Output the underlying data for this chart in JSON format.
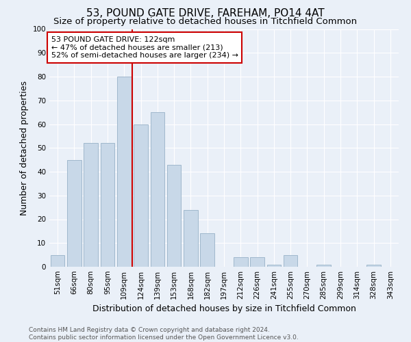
{
  "title": "53, POUND GATE DRIVE, FAREHAM, PO14 4AT",
  "subtitle": "Size of property relative to detached houses in Titchfield Common",
  "xlabel": "Distribution of detached houses by size in Titchfield Common",
  "ylabel": "Number of detached properties",
  "categories": [
    "51sqm",
    "66sqm",
    "80sqm",
    "95sqm",
    "109sqm",
    "124sqm",
    "139sqm",
    "153sqm",
    "168sqm",
    "182sqm",
    "197sqm",
    "212sqm",
    "226sqm",
    "241sqm",
    "255sqm",
    "270sqm",
    "285sqm",
    "299sqm",
    "314sqm",
    "328sqm",
    "343sqm"
  ],
  "values": [
    5,
    45,
    52,
    52,
    80,
    60,
    65,
    43,
    24,
    14,
    0,
    4,
    4,
    1,
    5,
    0,
    1,
    0,
    0,
    1,
    0
  ],
  "bar_color": "#c8d8e8",
  "bar_edge_color": "#a0b8cc",
  "vline_index": 5,
  "vline_color": "#cc0000",
  "annotation_text": "53 POUND GATE DRIVE: 122sqm\n← 47% of detached houses are smaller (213)\n52% of semi-detached houses are larger (234) →",
  "annotation_box_color": "#ffffff",
  "annotation_box_edge": "#cc0000",
  "ylim": [
    0,
    100
  ],
  "yticks": [
    0,
    10,
    20,
    30,
    40,
    50,
    60,
    70,
    80,
    90,
    100
  ],
  "footnote": "Contains HM Land Registry data © Crown copyright and database right 2024.\nContains public sector information licensed under the Open Government Licence v3.0.",
  "bg_color": "#eaf0f8",
  "plot_bg_color": "#eaf0f8",
  "title_fontsize": 11,
  "subtitle_fontsize": 9.5,
  "tick_fontsize": 7.5,
  "ylabel_fontsize": 9,
  "xlabel_fontsize": 9,
  "footnote_fontsize": 6.5,
  "footnote_color": "#555555"
}
